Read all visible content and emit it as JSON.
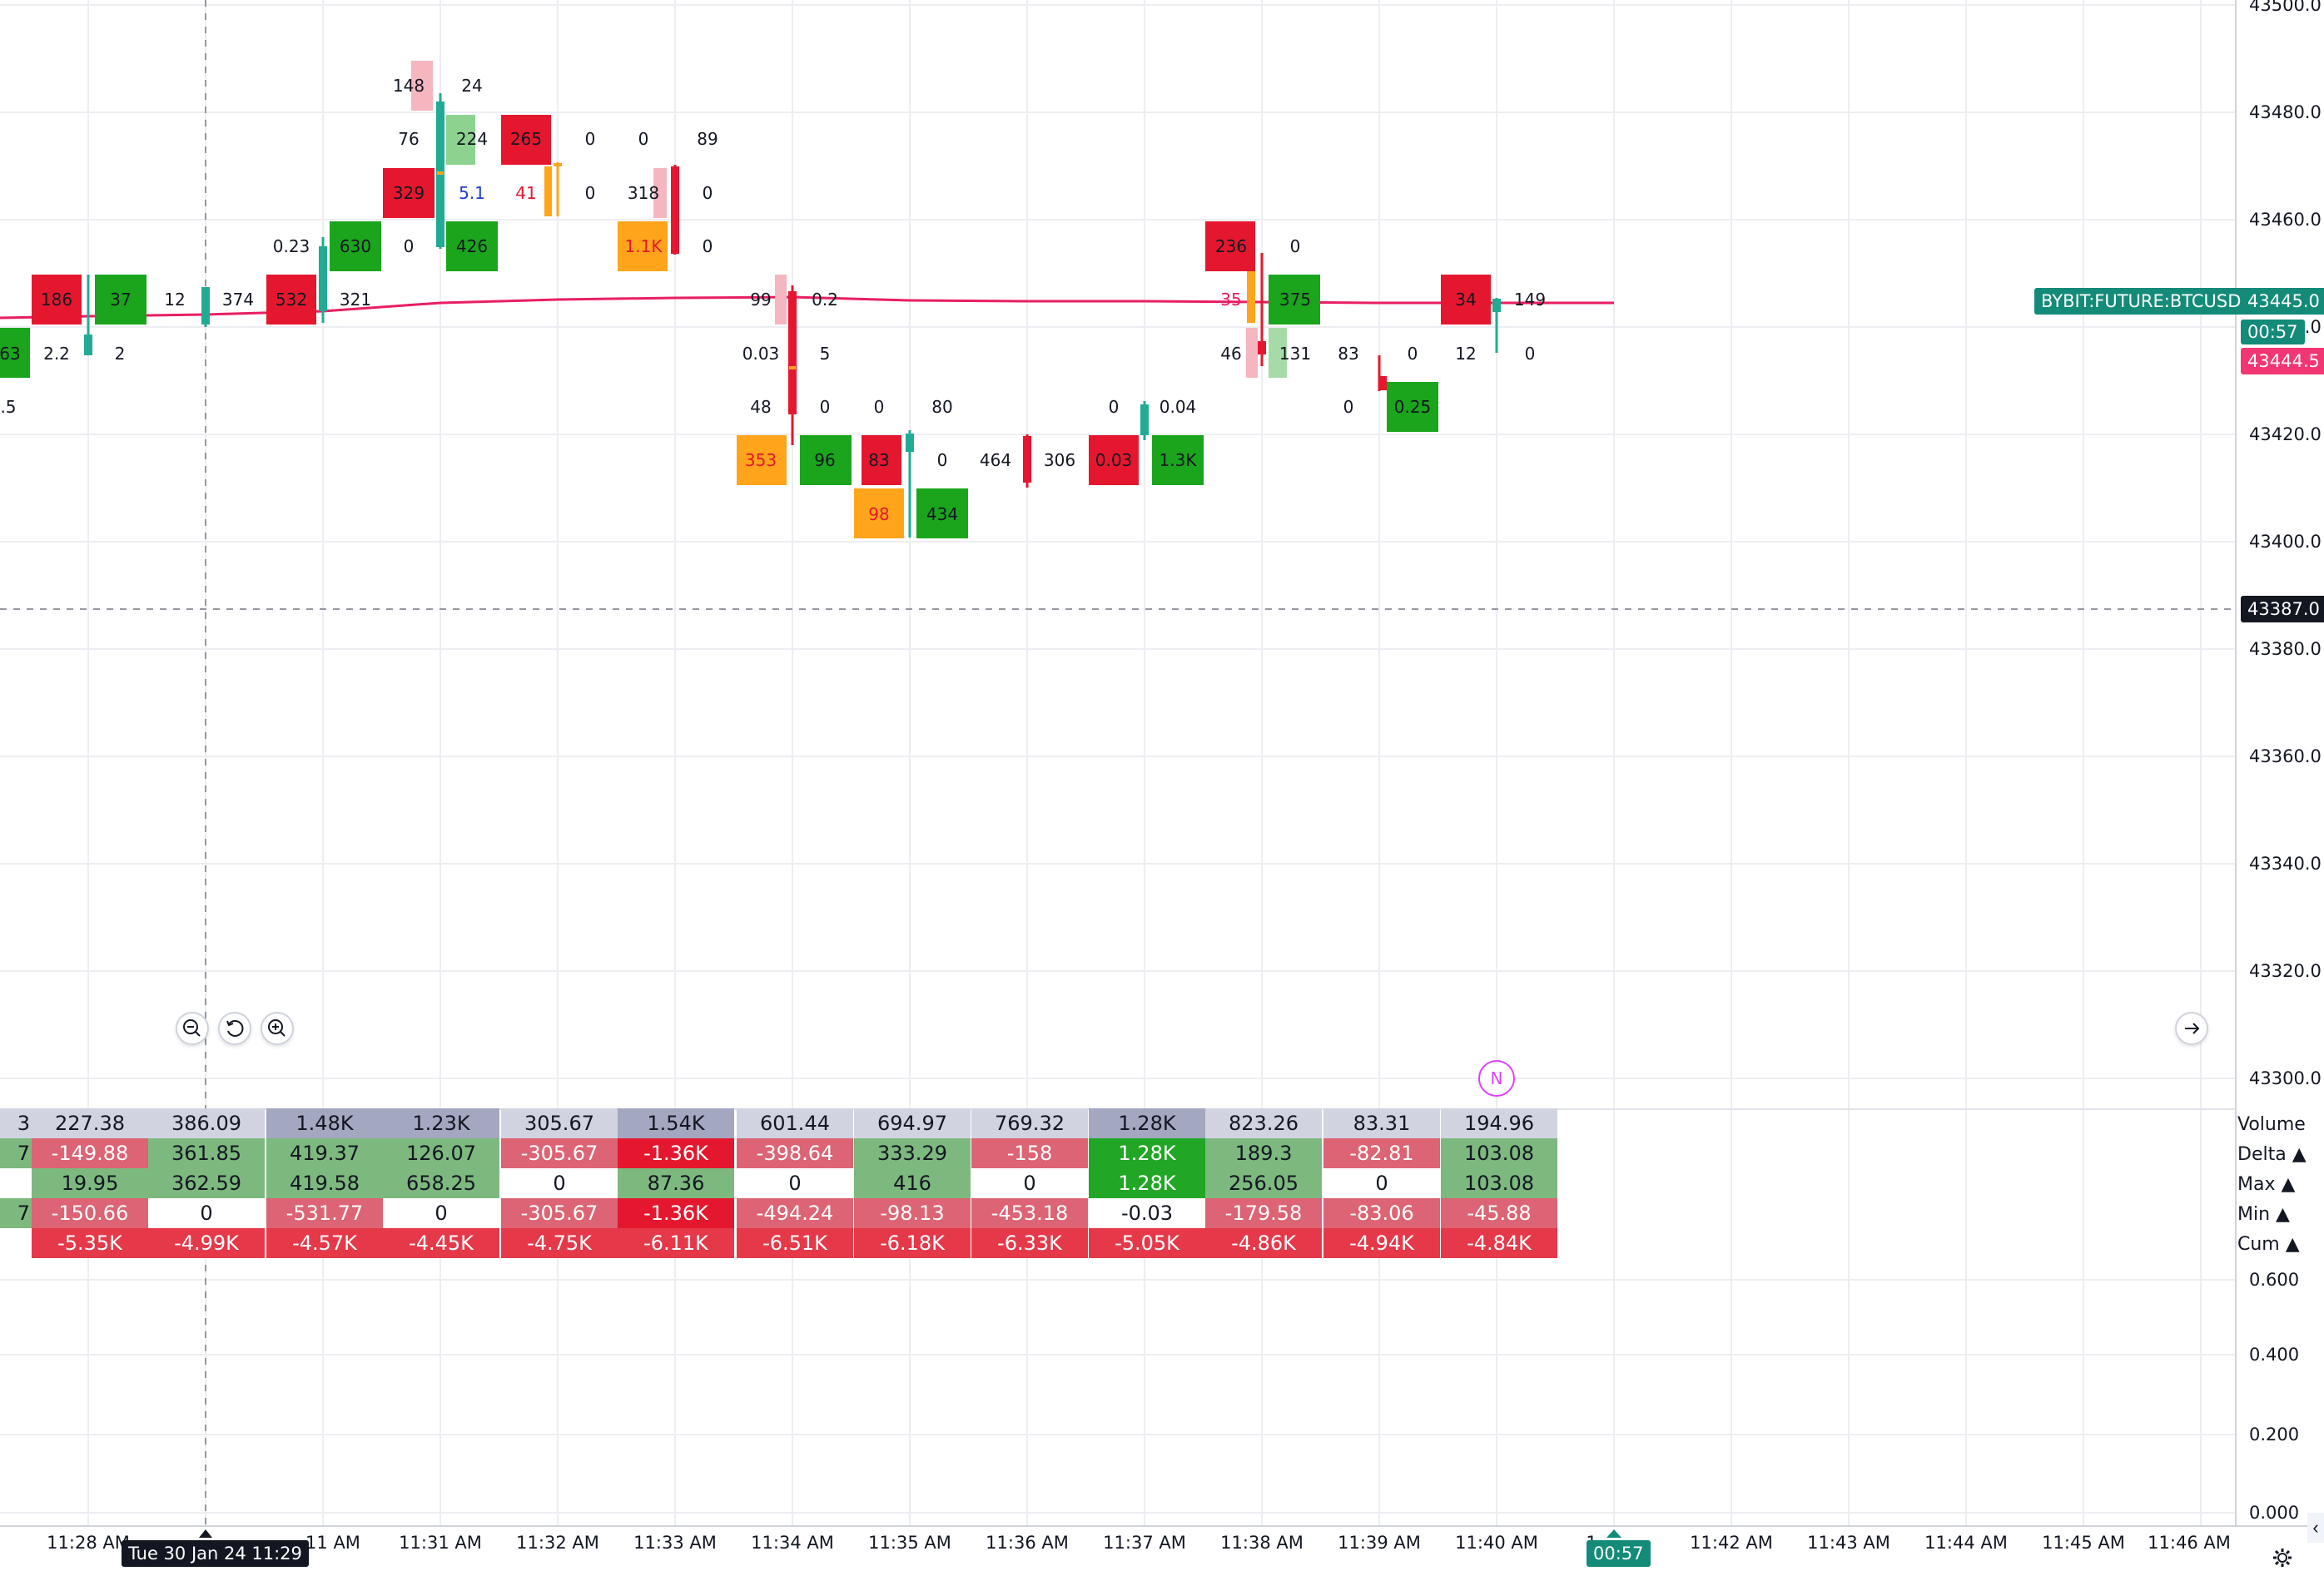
{
  "symbol_label": "BYBIT:FUTURE:BTCUSD",
  "last_price": "43445.0",
  "countdown": "00:57",
  "mark_price": "43444.5",
  "crosshair_price": "43387.0",
  "crosshair_time": "Tue 30 Jan 24 11:29",
  "time_countdown_tag": "00:57",
  "colors": {
    "bid": "#e5172e",
    "ask": "#1aa51c",
    "orange": "#ffa41b",
    "line": "#e91e63",
    "tag_green": "#138b78",
    "tag_pink": "#f23673"
  },
  "price_axis": [
    "43500.0",
    "43480.0",
    "43460.0",
    "43440.0",
    "43420.0",
    "43400.0",
    "43380.0",
    "43360.0",
    "43340.0",
    "43320.0",
    "43300.0"
  ],
  "indicator_axis": [
    "0.600",
    "0.400",
    "0.200",
    "0.000"
  ],
  "time_axis": [
    "11:28 AM",
    "11 AM",
    "11:31 AM",
    "11:32 AM",
    "11:33 AM",
    "11:34 AM",
    "11:35 AM",
    "11:36 AM",
    "11:37 AM",
    "11:38 AM",
    "11:39 AM",
    "11:40 AM",
    "1",
    "11:42 AM",
    "11:43 AM",
    "11:44 AM",
    "11:45 AM",
    "11:46 AM"
  ],
  "news_marker": "N",
  "footprint_cells": [
    {
      "v": "63",
      "c": "ask"
    },
    {
      "v": "2.2",
      "c": "none"
    },
    {
      "v": ".5",
      "c": "none"
    },
    {
      "v": "186",
      "c": "bid"
    },
    {
      "v": "37",
      "c": "ask"
    },
    {
      "v": "2",
      "c": "none"
    },
    {
      "v": "12",
      "c": "none"
    },
    {
      "v": "374",
      "c": "none"
    },
    {
      "v": "0.23",
      "c": "none"
    },
    {
      "v": "532",
      "c": "bid"
    },
    {
      "v": "630",
      "c": "ask"
    },
    {
      "v": "0",
      "c": "none"
    },
    {
      "v": "321",
      "c": "none"
    },
    {
      "v": "148",
      "c": "none"
    },
    {
      "v": "24",
      "c": "none"
    },
    {
      "v": "76",
      "c": "none"
    },
    {
      "v": "224",
      "c": "asklight"
    },
    {
      "v": "329",
      "c": "bid"
    },
    {
      "v": "5.1",
      "c": "blue"
    },
    {
      "v": "426",
      "c": "ask"
    },
    {
      "v": "265",
      "c": "bid"
    },
    {
      "v": "0",
      "c": "none"
    },
    {
      "v": "41",
      "c": "redtext"
    },
    {
      "v": "0",
      "c": "none"
    },
    {
      "v": "0",
      "c": "none"
    },
    {
      "v": "89",
      "c": "none"
    },
    {
      "v": "318",
      "c": "none"
    },
    {
      "v": "0",
      "c": "none"
    },
    {
      "v": "1.1K",
      "c": "orange"
    },
    {
      "v": "0",
      "c": "none"
    },
    {
      "v": "99",
      "c": "none"
    },
    {
      "v": "0.2",
      "c": "none"
    },
    {
      "v": "0.03",
      "c": "none"
    },
    {
      "v": "5",
      "c": "none"
    },
    {
      "v": "48",
      "c": "none"
    },
    {
      "v": "0",
      "c": "none"
    },
    {
      "v": "353",
      "c": "orange"
    },
    {
      "v": "96",
      "c": "ask"
    },
    {
      "v": "0",
      "c": "none"
    },
    {
      "v": "80",
      "c": "none"
    },
    {
      "v": "83",
      "c": "bid"
    },
    {
      "v": "0",
      "c": "none"
    },
    {
      "v": "98",
      "c": "orange"
    },
    {
      "v": "434",
      "c": "ask"
    },
    {
      "v": "464",
      "c": "none"
    },
    {
      "v": "306",
      "c": "none"
    },
    {
      "v": "0",
      "c": "none"
    },
    {
      "v": "0.04",
      "c": "none"
    },
    {
      "v": "0.03",
      "c": "bid"
    },
    {
      "v": "1.3K",
      "c": "ask"
    },
    {
      "v": "236",
      "c": "bid"
    },
    {
      "v": "0",
      "c": "none"
    },
    {
      "v": "35",
      "c": "pinktext"
    },
    {
      "v": "375",
      "c": "ask"
    },
    {
      "v": "46",
      "c": "none"
    },
    {
      "v": "131",
      "c": "none"
    },
    {
      "v": "83",
      "c": "none"
    },
    {
      "v": "0",
      "c": "none"
    },
    {
      "v": "0",
      "c": "none"
    },
    {
      "v": "0.25",
      "c": "ask"
    },
    {
      "v": "34",
      "c": "bid"
    },
    {
      "v": "149",
      "c": "none"
    },
    {
      "v": "12",
      "c": "none"
    },
    {
      "v": "0",
      "c": "none"
    }
  ],
  "stats": {
    "labels": [
      "Volume",
      "Delta ▲",
      "Max ▲",
      "Min ▲",
      "Cum ▲"
    ],
    "rows": [
      [
        "3",
        "227.38",
        "386.09",
        "1.48K",
        "1.23K",
        "305.67",
        "1.54K",
        "601.44",
        "694.97",
        "769.32",
        "1.28K",
        "823.26",
        "83.31",
        "194.96"
      ],
      [
        "7",
        "-149.88",
        "361.85",
        "419.37",
        "126.07",
        "-305.67",
        "-1.36K",
        "-398.64",
        "333.29",
        "-158",
        "1.28K",
        "189.3",
        "-82.81",
        "103.08"
      ],
      [
        "",
        "19.95",
        "362.59",
        "419.58",
        "658.25",
        "0",
        "87.36",
        "0",
        "416",
        "0",
        "1.28K",
        "256.05",
        "0",
        "103.08"
      ],
      [
        "7",
        "-150.66",
        "0",
        "-531.77",
        "0",
        "-305.67",
        "-1.36K",
        "-494.24",
        "-98.13",
        "-453.18",
        "-0.03",
        "-179.58",
        "-83.06",
        "-45.88"
      ],
      [
        "",
        "-5.35K",
        "-4.99K",
        "-4.57K",
        "-4.45K",
        "-4.75K",
        "-6.11K",
        "-6.51K",
        "-6.18K",
        "-6.33K",
        "-5.05K",
        "-4.86K",
        "-4.94K",
        "-4.84K"
      ]
    ]
  }
}
